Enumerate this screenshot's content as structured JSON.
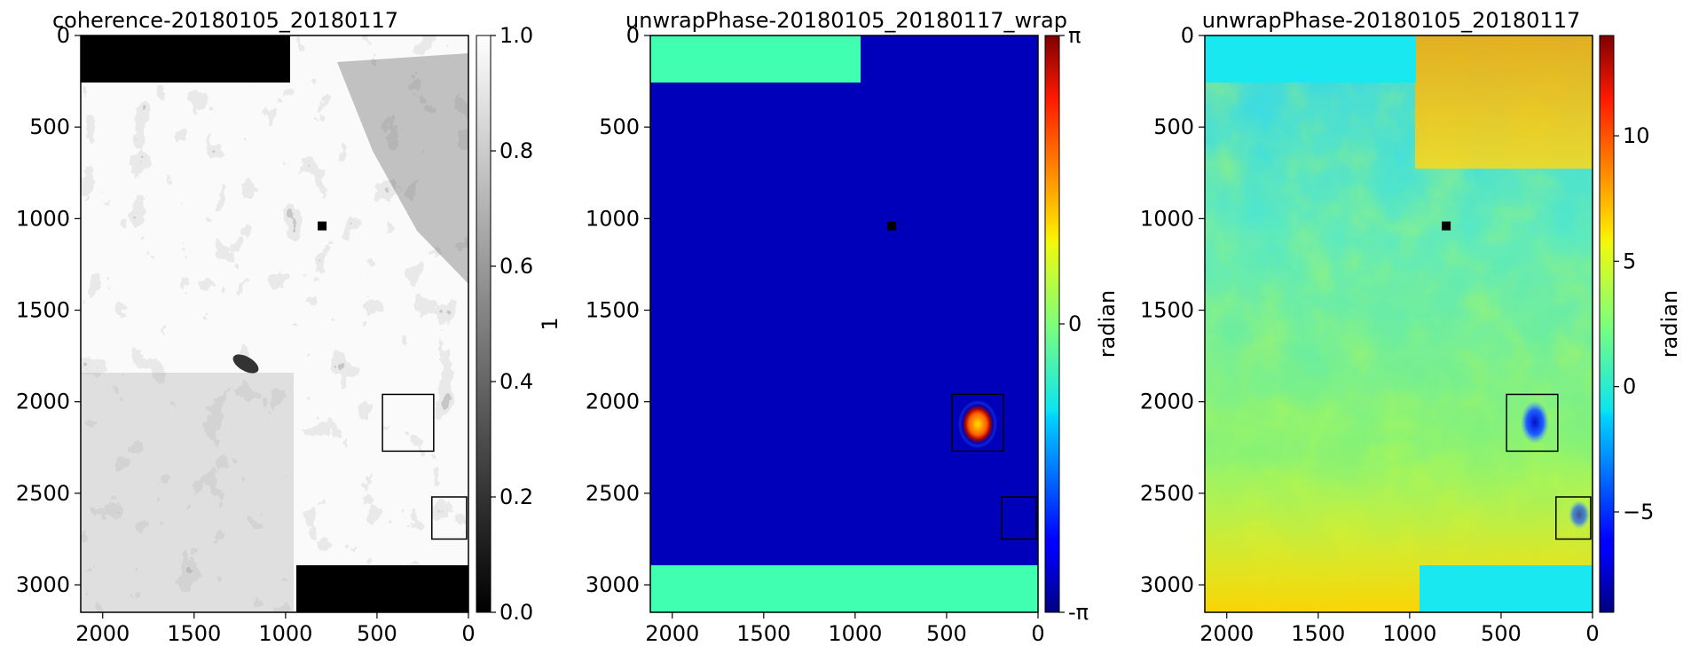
{
  "chart_data": [
    {
      "type": "heatmap",
      "title": "coherence-20180105_20180117",
      "colormap": "gray",
      "xlim": [
        2120,
        0
      ],
      "ylim": [
        3150,
        0
      ],
      "xticks": [
        2000,
        1500,
        1000,
        500,
        0
      ],
      "yticks": [
        0,
        500,
        1000,
        1500,
        2000,
        2500,
        3000
      ],
      "colorbar": {
        "label": "1",
        "range": [
          0.0,
          1.0
        ],
        "ticks": [
          {
            "value": 0.0,
            "label": "0.0"
          },
          {
            "value": 0.2,
            "label": "0.2"
          },
          {
            "value": 0.4,
            "label": "0.4"
          },
          {
            "value": 0.6,
            "label": "0.6"
          },
          {
            "value": 0.8,
            "label": "0.8"
          },
          {
            "value": 1.0,
            "label": "1.0"
          }
        ]
      },
      "reference_point": {
        "x": 800,
        "y": 1040
      },
      "boxes": [
        {
          "x0": 470,
          "x1": 190,
          "y0": 1960,
          "y1": 2270
        },
        {
          "x0": 200,
          "x1": 10,
          "y0": 2520,
          "y1": 2750
        }
      ]
    },
    {
      "type": "heatmap",
      "title": "unwrapPhase-20180105_20180117_wrap",
      "colormap": "jet",
      "xlim": [
        2120,
        0
      ],
      "ylim": [
        3150,
        0
      ],
      "xticks": [
        2000,
        1500,
        1000,
        500,
        0
      ],
      "yticks": [
        0,
        500,
        1000,
        1500,
        2000,
        2500,
        3000
      ],
      "colorbar": {
        "label": "radian",
        "range": [
          -3.14159,
          3.14159
        ],
        "ticks": [
          {
            "value": -3.14159,
            "label": "-π"
          },
          {
            "value": 0,
            "label": "0"
          },
          {
            "value": 3.14159,
            "label": "π"
          }
        ]
      },
      "reference_point": {
        "x": 800,
        "y": 1040
      },
      "boxes": [
        {
          "x0": 470,
          "x1": 190,
          "y0": 1960,
          "y1": 2270
        },
        {
          "x0": 200,
          "x1": 10,
          "y0": 2520,
          "y1": 2750
        }
      ]
    },
    {
      "type": "heatmap",
      "title": "unwrapPhase-20180105_20180117",
      "colormap": "jet",
      "xlim": [
        2120,
        0
      ],
      "ylim": [
        3150,
        0
      ],
      "xticks": [
        2000,
        1500,
        1000,
        500,
        0
      ],
      "yticks": [
        0,
        500,
        1000,
        1500,
        2000,
        2500,
        3000
      ],
      "colorbar": {
        "label": "radian",
        "range": [
          -9,
          14
        ],
        "ticks": [
          {
            "value": -5,
            "label": "−5"
          },
          {
            "value": 0,
            "label": "0"
          },
          {
            "value": 5,
            "label": "5"
          },
          {
            "value": 10,
            "label": "10"
          }
        ]
      },
      "reference_point": {
        "x": 800,
        "y": 1040
      },
      "boxes": [
        {
          "x0": 470,
          "x1": 190,
          "y0": 1960,
          "y1": 2270
        },
        {
          "x0": 200,
          "x1": 10,
          "y0": 2520,
          "y1": 2750
        }
      ]
    }
  ]
}
